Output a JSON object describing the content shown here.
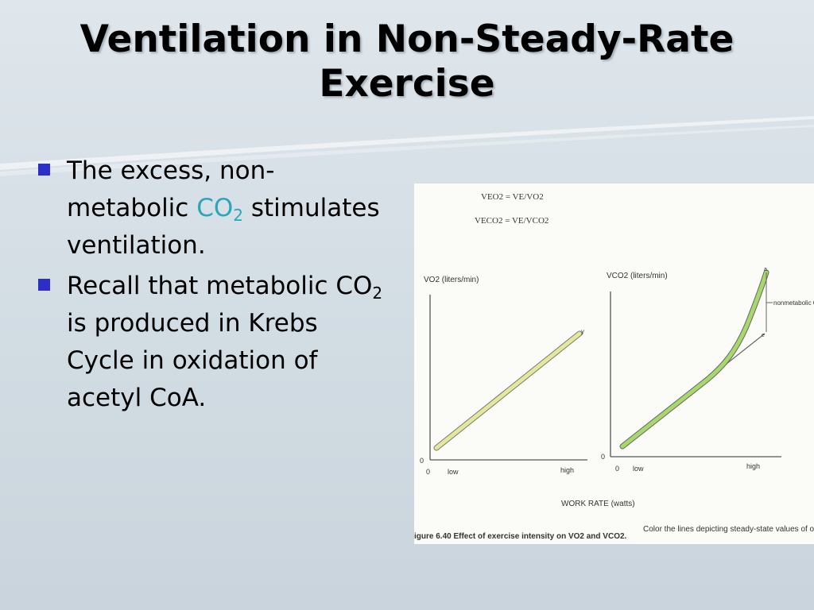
{
  "slide": {
    "title_line1": "Ventilation in Non-Steady-Rate",
    "title_line2": "Exercise",
    "bullets": [
      {
        "part1": "The excess, non-metabolic ",
        "co2_main": "CO",
        "co2_sub": "2",
        "part2": " stimulates ventilation."
      },
      {
        "part1": "Recall that metabolic ",
        "co2_main": "CO",
        "co2_sub": "2",
        "part2": " is produced in Krebs Cycle in oxidation of acetyl CoA."
      }
    ]
  },
  "figure": {
    "equation1": "VEO2 = VE/VO2",
    "equation2": "VECO2 = VE/VCO2",
    "left_chart": {
      "ylabel": "VO2 (liters/min)",
      "y_zero": "0",
      "x_zero": "0",
      "x_low": "low",
      "x_high": "high",
      "end_marker": "y"
    },
    "right_chart": {
      "ylabel": "VCO2 (liters/min)",
      "y_zero": "0",
      "x_zero": "0",
      "x_low": "low",
      "x_high": "high",
      "annotation": "nonmetabolic C",
      "marker_top": "a",
      "marker_mid": "e"
    },
    "xlabel": "WORK RATE (watts)",
    "caption_bold": "igure 6.40   Effect of exercise intensity on VO2 and VCO2.",
    "caption_rest": "Color the lines depicting steady-state values of oxygen"
  },
  "colors": {
    "bullet": "#2b2fc8",
    "co2_highlight": "#2ba6b8",
    "line_yellow": "#e4e89a",
    "line_green": "#a6d86b"
  }
}
